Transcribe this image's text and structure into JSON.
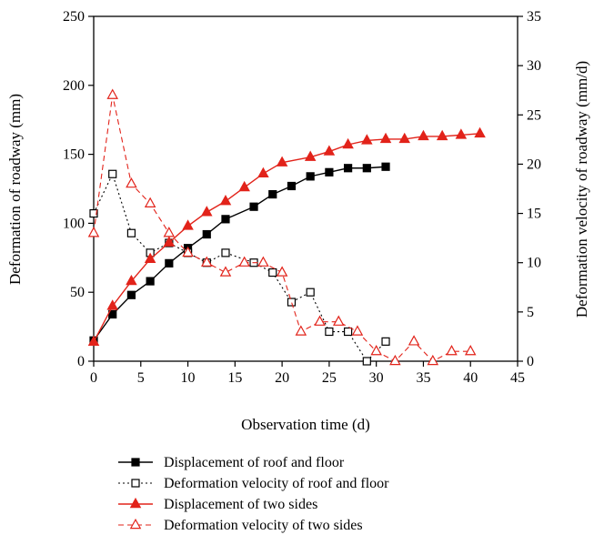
{
  "colors": {
    "black": "#000000",
    "red": "#e2231a"
  },
  "chart_data": {
    "type": "line",
    "xlabel": "Observation time (d)",
    "ylabel_left": "Deformation of roadway (mm)",
    "ylabel_right": "Deformation velocity of roadway (mm/d)",
    "xlim": [
      0,
      45
    ],
    "ylim_left": [
      0,
      250
    ],
    "ylim_right": [
      0,
      35
    ],
    "x_ticks": [
      "0",
      "5",
      "10",
      "15",
      "20",
      "25",
      "30",
      "35",
      "40",
      "45"
    ],
    "y_left_ticks": [
      "0",
      "50",
      "100",
      "150",
      "200",
      "250"
    ],
    "y_right_ticks": [
      "0",
      "5",
      "10",
      "15",
      "20",
      "25",
      "30",
      "35"
    ],
    "grid": false,
    "legend_position": "bottom",
    "series": [
      {
        "name": "Displacement of roof and floor",
        "axis": "left",
        "color": "#000000",
        "line_style": "solid",
        "marker": "filled-square",
        "x": [
          0,
          2,
          4,
          6,
          8,
          10,
          12,
          14,
          17,
          19,
          21,
          23,
          25,
          27,
          29,
          31
        ],
        "y": [
          15,
          34,
          48,
          58,
          71,
          82,
          92,
          103,
          112,
          121,
          127,
          134,
          137,
          140,
          140,
          141
        ]
      },
      {
        "name": "Deformation velocity of roof and floor",
        "axis": "right",
        "color": "#000000",
        "line_style": "dotted",
        "marker": "open-square",
        "x": [
          0,
          2,
          4,
          6,
          8,
          10,
          12,
          14,
          17,
          19,
          21,
          23,
          25,
          27,
          29,
          31
        ],
        "y": [
          15,
          19,
          13,
          11,
          12,
          11,
          10,
          11,
          10,
          9,
          6,
          7,
          3,
          3,
          0,
          2
        ]
      },
      {
        "name": "Displacement of two sides",
        "axis": "left",
        "color": "#e2231a",
        "line_style": "solid",
        "marker": "filled-triangle",
        "x": [
          0,
          2,
          4,
          6,
          8,
          10,
          12,
          14,
          16,
          18,
          20,
          23,
          25,
          27,
          29,
          31,
          33,
          35,
          37,
          39,
          41
        ],
        "y": [
          14,
          40,
          58,
          74,
          86,
          98,
          108,
          116,
          126,
          136,
          144,
          148,
          152,
          157,
          160,
          161,
          161,
          163,
          163,
          164,
          165
        ]
      },
      {
        "name": "Deformation velocity of two sides",
        "axis": "right",
        "color": "#e2231a",
        "line_style": "dashed",
        "marker": "open-triangle",
        "x": [
          0,
          2,
          4,
          6,
          8,
          10,
          12,
          14,
          16,
          18,
          20,
          22,
          24,
          26,
          28,
          30,
          32,
          34,
          36,
          38,
          40
        ],
        "y": [
          13,
          27,
          18,
          16,
          13,
          11,
          10,
          9,
          10,
          10,
          9,
          3,
          4,
          4,
          3,
          1,
          0,
          2,
          0,
          1,
          1
        ]
      }
    ]
  }
}
